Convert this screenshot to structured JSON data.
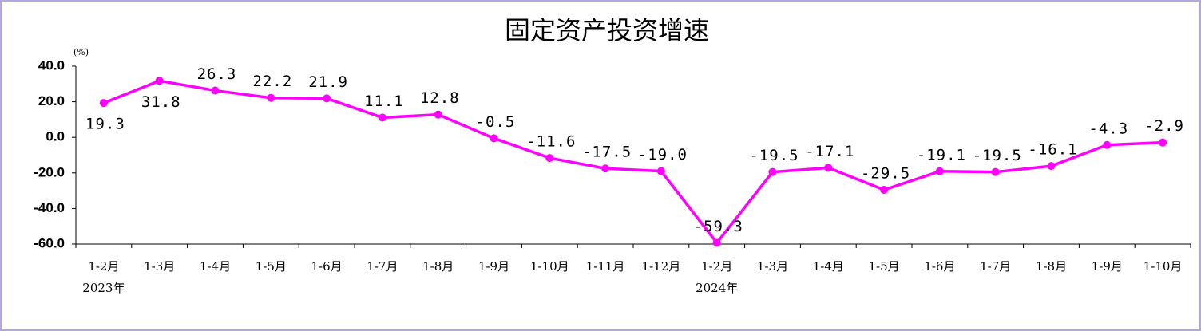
{
  "chart_data": {
    "type": "line",
    "title": "固定资产投资增速",
    "y_unit": "(%)",
    "categories": [
      "1-2月",
      "1-3月",
      "1-4月",
      "1-5月",
      "1-6月",
      "1-7月",
      "1-8月",
      "1-9月",
      "1-10月",
      "1-11月",
      "1-12月",
      "1-2月",
      "1-3月",
      "1-4月",
      "1-5月",
      "1-6月",
      "1-7月",
      "1-8月",
      "1-9月",
      "1-10月"
    ],
    "years": [
      "2023年",
      null,
      null,
      null,
      null,
      null,
      null,
      null,
      null,
      null,
      null,
      "2024年",
      null,
      null,
      null,
      null,
      null,
      null,
      null,
      null
    ],
    "series": [
      {
        "name": "固定资产投资增速",
        "color": "#ff00ff",
        "values": [
          19.3,
          31.8,
          26.3,
          22.2,
          21.9,
          11.1,
          12.8,
          -0.5,
          -11.6,
          -17.5,
          -19.0,
          -59.3,
          -19.5,
          -17.1,
          -29.5,
          -19.1,
          -19.5,
          -16.1,
          -4.3,
          -2.9
        ],
        "value_labels": [
          "19.3",
          "31.8",
          "26.3",
          "22.2",
          "21.9",
          "11.1",
          "12.8",
          "-0.5",
          "-11.6",
          "-17.5",
          "-19.0",
          "-59.3",
          "-19.5",
          "-17.1",
          "-29.5",
          "-19.1",
          "-19.5",
          "-16.1",
          "-4.3",
          "-2.9"
        ]
      }
    ],
    "ylim": [
      -60,
      40
    ],
    "yticks": [
      {
        "value": -60,
        "label": "-60.0"
      },
      {
        "value": -40,
        "label": "-40.0"
      },
      {
        "value": -20,
        "label": "-20.0"
      },
      {
        "value": 0,
        "label": "0.0"
      },
      {
        "value": 20,
        "label": "20.0"
      },
      {
        "value": 40,
        "label": "40.0"
      }
    ]
  }
}
